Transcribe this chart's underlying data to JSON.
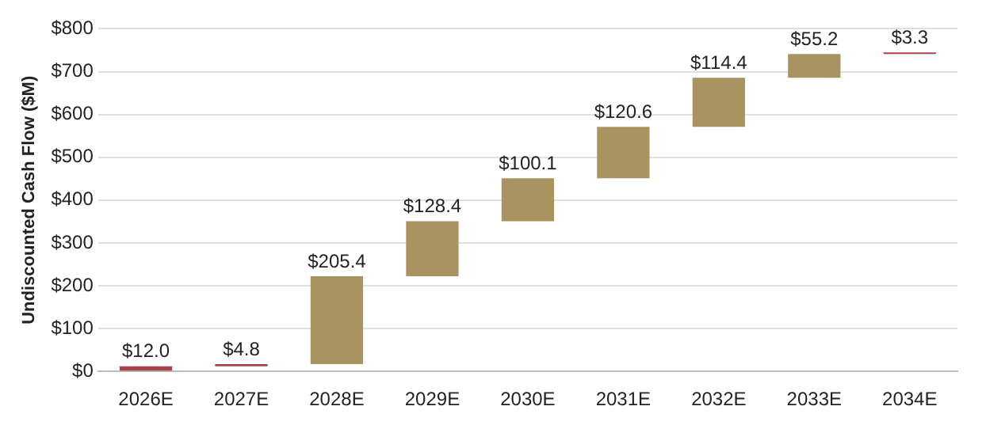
{
  "chart_data": {
    "type": "bar",
    "ylabel": "Undiscounted Cash Flow ($M)",
    "categories": [
      "2026E",
      "2027E",
      "2028E",
      "2029E",
      "2030E",
      "2031E",
      "2032E",
      "2033E",
      "2034E"
    ],
    "values": [
      12.0,
      4.8,
      205.4,
      128.4,
      100.1,
      120.6,
      114.4,
      55.2,
      3.3
    ],
    "base": [
      0,
      12.0,
      16.8,
      222.2,
      350.6,
      450.7,
      571.3,
      685.7,
      740.9
    ],
    "colors": [
      "#a8434b",
      "#a8434b",
      "#a99461",
      "#a99461",
      "#a99461",
      "#a99461",
      "#a99461",
      "#a99461",
      "#a8434b"
    ],
    "value_labels": [
      "$12.0",
      "$4.8",
      "$205.4",
      "$128.4",
      "$100.1",
      "$120.6",
      "$114.4",
      "$55.2",
      "$3.3"
    ],
    "ylim": [
      0,
      800
    ],
    "yticks": [
      {
        "value": 0,
        "label": "$0"
      },
      {
        "value": 100,
        "label": "$100"
      },
      {
        "value": 200,
        "label": "$200"
      },
      {
        "value": 300,
        "label": "$300"
      },
      {
        "value": 400,
        "label": "$400"
      },
      {
        "value": 500,
        "label": "$500"
      },
      {
        "value": 600,
        "label": "$600"
      },
      {
        "value": 700,
        "label": "$700"
      },
      {
        "value": 800,
        "label": "$800"
      }
    ],
    "grid": "y",
    "legend": false
  }
}
